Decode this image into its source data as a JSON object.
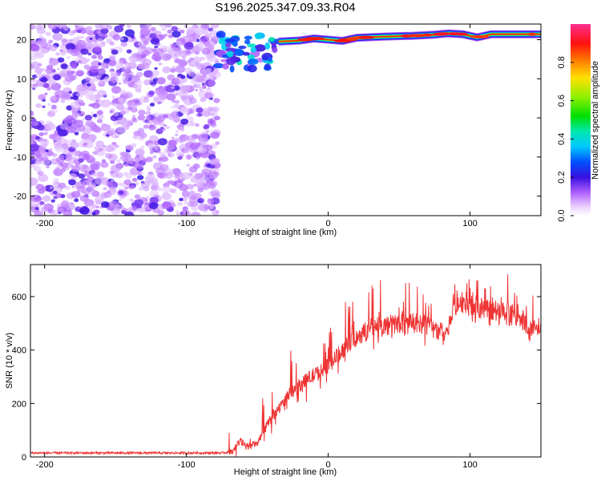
{
  "figure_title": "S196.2025.347.09.33.R04",
  "chart_data": [
    {
      "type": "heatmap",
      "title": "S196.2025.347.09.33.R04",
      "xlabel": "Height of straight line (km)",
      "ylabel": "Frequency (Hz)",
      "xlim": [
        -210,
        150
      ],
      "ylim": [
        -25,
        24
      ],
      "xticks": [
        -200,
        -100,
        0,
        100
      ],
      "yticks": [
        -20,
        -10,
        0,
        10,
        20
      ],
      "colorbar": {
        "label": "Normalized spectral amplitude",
        "range": [
          0,
          1
        ],
        "ticks": [
          0.0,
          0.2,
          0.4,
          0.6,
          0.8
        ],
        "tick_labels": [
          "0.0",
          "0.2",
          "0.4",
          "0.6",
          "0.8"
        ]
      },
      "features": [
        {
          "name": "broadband noise",
          "x_range": [
            -210,
            -78
          ],
          "y_range": [
            -25,
            24
          ],
          "amplitude": 0.05
        },
        {
          "name": "tone onset",
          "x_range": [
            -78,
            -35
          ],
          "y_center": 17,
          "amplitude": 0.3
        },
        {
          "name": "tone track",
          "x": [
            -35,
            -20,
            -10,
            0,
            10,
            20,
            40,
            60,
            75,
            85,
            95,
            105,
            115,
            150
          ],
          "y": [
            19.5,
            19.8,
            20.3,
            20.0,
            19.7,
            20.5,
            20.8,
            21.0,
            21.3,
            21.6,
            21.4,
            20.6,
            21.4,
            21.4
          ],
          "amplitude": 0.9
        }
      ]
    },
    {
      "type": "line",
      "title": "",
      "xlabel": "Height of straight line (km)",
      "ylabel": "SNR (10 * v/v)",
      "xlim": [
        -210,
        150
      ],
      "ylim": [
        0,
        720
      ],
      "xticks": [
        -200,
        -100,
        0,
        100
      ],
      "yticks": [
        0,
        200,
        400,
        600
      ],
      "series": [
        {
          "name": "SNR",
          "color": "#ee3333",
          "x": [
            -210,
            -190,
            -170,
            -150,
            -130,
            -110,
            -90,
            -75,
            -68,
            -62,
            -58,
            -50,
            -42,
            -35,
            -28,
            -20,
            -12,
            -5,
            0,
            10,
            20,
            30,
            40,
            50,
            60,
            70,
            78,
            85,
            88,
            95,
            105,
            120,
            135,
            142,
            150
          ],
          "y": [
            15,
            15,
            15,
            15,
            15,
            15,
            15,
            15,
            20,
            60,
            40,
            50,
            130,
            180,
            230,
            270,
            300,
            320,
            340,
            400,
            450,
            480,
            490,
            500,
            500,
            490,
            470,
            475,
            570,
            580,
            560,
            540,
            530,
            470,
            490
          ]
        }
      ]
    }
  ]
}
